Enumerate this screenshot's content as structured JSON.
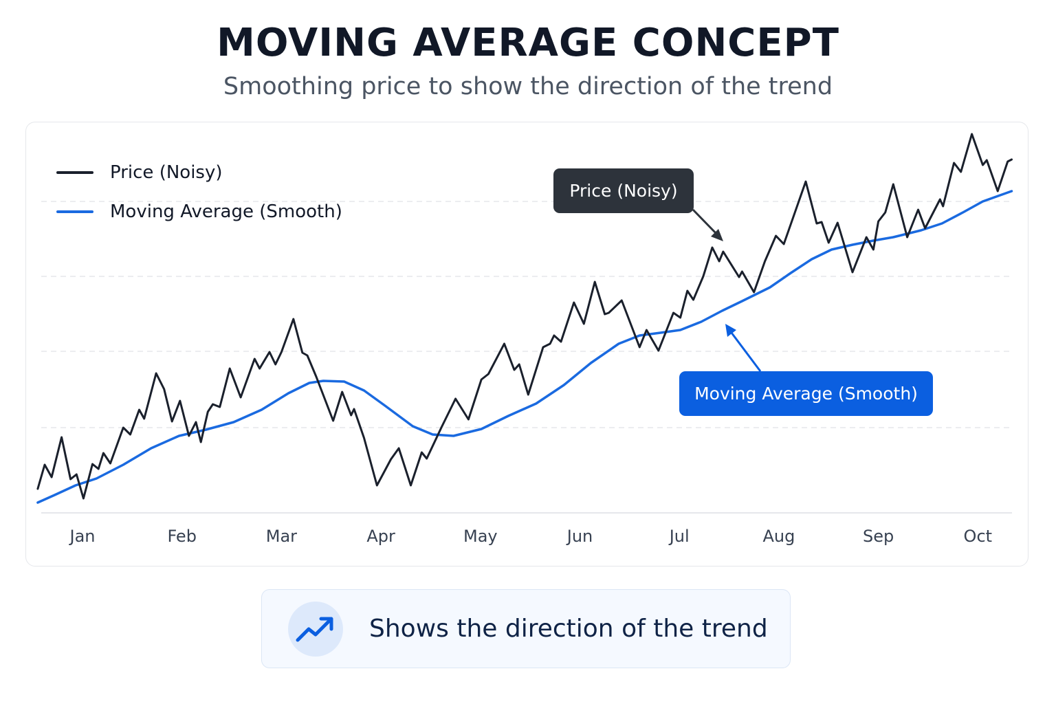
{
  "colors": {
    "price": "#1a202c",
    "moving_average": "#1a6ae0",
    "price_callout": "#2d333b",
    "ma_callout": "#0b5fe0",
    "grid": "#e5e7eb"
  },
  "chart_data": {
    "type": "line",
    "title": "MOVING AVERAGE CONCEPT",
    "subtitle": "Smoothing price to show the direction of the trend",
    "xlabel": "",
    "ylabel": "",
    "x_ticks": [
      "Jan",
      "Feb",
      "Mar",
      "Apr",
      "May",
      "Jun",
      "Jul",
      "Aug",
      "Sep",
      "Oct"
    ],
    "y_axis_labels_shown": false,
    "grid": "horizontal dashed",
    "legend_placement": "top-left",
    "ylim": [
      0,
      112
    ],
    "series": [
      {
        "name": "Price (Noisy)",
        "x": [
          -0.45,
          -0.38,
          -0.31,
          -0.21,
          -0.12,
          -0.06,
          0.01,
          0.1,
          0.16,
          0.21,
          0.28,
          0.41,
          0.48,
          0.57,
          0.62,
          0.74,
          0.82,
          0.9,
          0.98,
          1.07,
          1.14,
          1.19,
          1.26,
          1.31,
          1.38,
          1.48,
          1.59,
          1.73,
          1.78,
          1.88,
          1.94,
          2.0,
          2.12,
          2.21,
          2.26,
          2.35,
          2.52,
          2.61,
          2.7,
          2.73,
          2.83,
          2.96,
          3.1,
          3.18,
          3.3,
          3.41,
          3.46,
          3.61,
          3.75,
          3.88,
          4.01,
          4.08,
          4.24,
          4.34,
          4.39,
          4.48,
          4.63,
          4.7,
          4.74,
          4.81,
          4.94,
          5.04,
          5.15,
          5.25,
          5.29,
          5.42,
          5.6,
          5.67,
          5.79,
          5.94,
          6.01,
          6.08,
          6.14,
          6.24,
          6.33,
          6.4,
          6.44,
          6.6,
          6.63,
          6.75,
          6.86,
          6.97,
          7.05,
          7.27,
          7.38,
          7.43,
          7.5,
          7.59,
          7.74,
          7.88,
          7.95,
          8.0,
          8.07,
          8.15,
          8.29,
          8.4,
          8.47,
          8.62,
          8.65,
          8.76,
          8.83,
          8.94,
          9.05,
          9.09,
          9.2,
          9.3,
          9.34
        ],
        "y": [
          6.8,
          13.8,
          10.2,
          21.8,
          9.6,
          11.0,
          4.0,
          14.0,
          12.6,
          17.2,
          14.2,
          24.6,
          22.6,
          29.8,
          27.2,
          40.4,
          35.8,
          26.4,
          32.4,
          22.2,
          26.2,
          20.4,
          29.2,
          31.4,
          30.6,
          41.8,
          33.4,
          44.6,
          41.8,
          46.6,
          43.0,
          46.6,
          56.2,
          46.4,
          45.6,
          39.4,
          26.6,
          35.0,
          28.2,
          30.0,
          21.6,
          7.8,
          15.4,
          18.6,
          7.8,
          17.4,
          15.6,
          24.8,
          33.0,
          27.0,
          38.6,
          40.2,
          49.0,
          41.4,
          43.0,
          34.2,
          48.0,
          49.0,
          51.4,
          49.6,
          61.0,
          54.8,
          67.0,
          57.6,
          58.0,
          61.6,
          48.0,
          53.0,
          47.0,
          58.0,
          56.6,
          64.4,
          61.8,
          68.6,
          77.0,
          73.0,
          75.8,
          68.4,
          70.0,
          64.0,
          73.0,
          80.4,
          78.0,
          96.2,
          84.0,
          84.4,
          78.4,
          84.2,
          69.8,
          80.0,
          76.4,
          84.6,
          87.2,
          95.4,
          80.0,
          88.0,
          82.6,
          91.0,
          89.0,
          101.6,
          99.0,
          110.0,
          101.0,
          102.4,
          93.4,
          102.0,
          102.6
        ]
      },
      {
        "name": "Moving Average (Smooth)",
        "x": [
          -0.45,
          -0.28,
          -0.07,
          0.14,
          0.41,
          0.69,
          0.97,
          1.24,
          1.52,
          1.8,
          2.07,
          2.28,
          2.42,
          2.63,
          2.83,
          3.04,
          3.32,
          3.52,
          3.73,
          4.01,
          4.28,
          4.56,
          4.84,
          5.11,
          5.39,
          5.6,
          5.81,
          6.01,
          6.22,
          6.43,
          6.63,
          6.91,
          7.12,
          7.33,
          7.53,
          7.74,
          7.95,
          8.15,
          8.43,
          8.64,
          8.85,
          9.05,
          9.34
        ],
        "y": [
          2.8,
          5.0,
          7.8,
          9.8,
          13.8,
          18.6,
          22.2,
          24.0,
          26.2,
          29.8,
          34.6,
          37.6,
          38.2,
          38.0,
          35.4,
          31.0,
          25.0,
          22.6,
          22.2,
          24.2,
          28.0,
          31.6,
          37.0,
          43.4,
          49.0,
          51.4,
          52.2,
          53.0,
          55.4,
          58.6,
          61.4,
          65.4,
          69.6,
          73.6,
          76.4,
          77.8,
          79.0,
          80.0,
          82.0,
          84.0,
          87.2,
          90.4,
          93.4
        ]
      }
    ],
    "annotations": [
      "Price (Noisy)",
      "Moving Average (Smooth)"
    ]
  },
  "footer_note": {
    "icon": "trending-up-icon",
    "text": "Shows the direction of the trend"
  }
}
